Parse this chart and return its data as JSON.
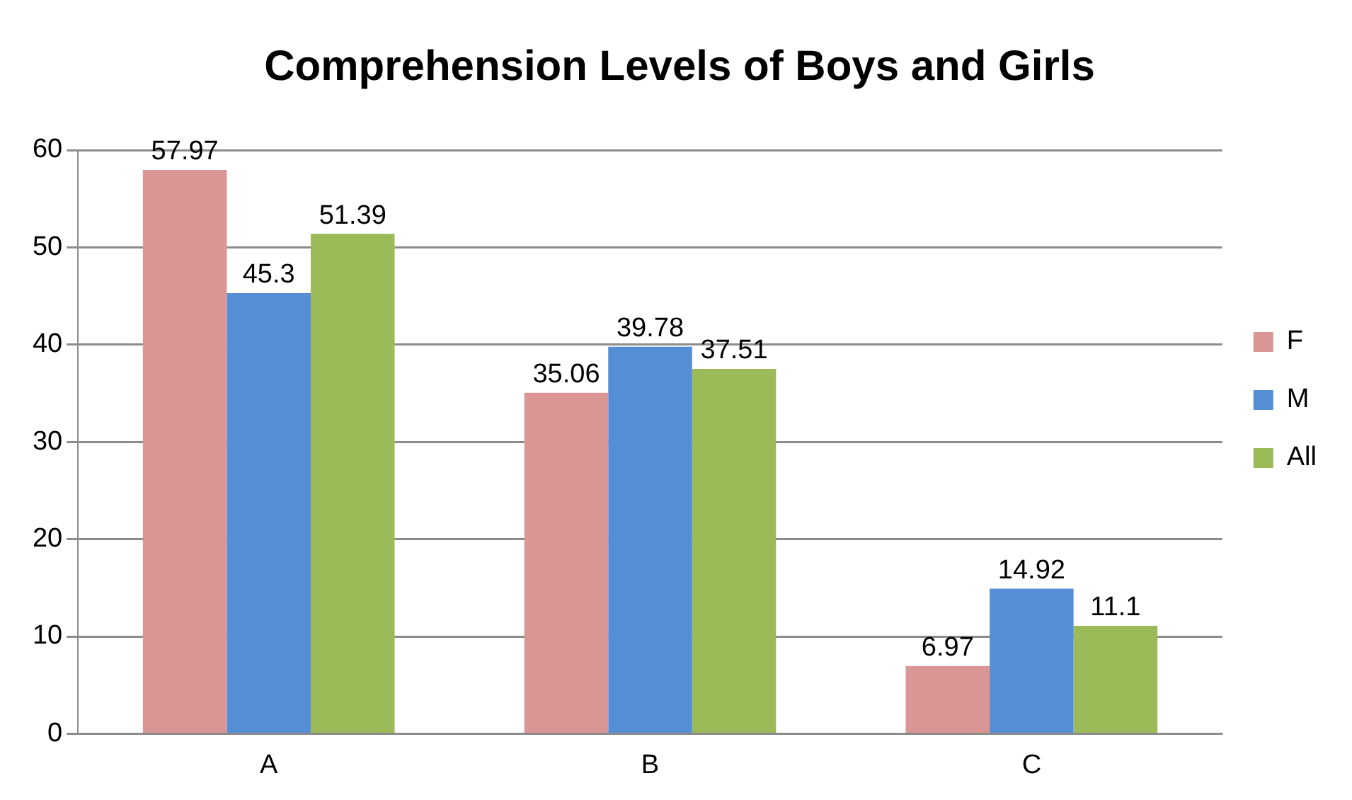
{
  "chart_data": {
    "type": "bar",
    "title": "Comprehension Levels of Boys and Girls",
    "categories": [
      "A",
      "B",
      "C"
    ],
    "series": [
      {
        "name": "F",
        "color": "#d99694",
        "values": [
          57.97,
          35.06,
          6.97
        ]
      },
      {
        "name": "M",
        "color": "#558ed5",
        "values": [
          45.3,
          39.78,
          14.92
        ]
      },
      {
        "name": "All",
        "color": "#9bbb59",
        "values": [
          51.39,
          37.51,
          11.1
        ]
      }
    ],
    "ylim": [
      0,
      60
    ],
    "yticks": [
      0,
      10,
      20,
      30,
      40,
      50,
      60
    ],
    "grid": "y",
    "legend": "right",
    "data_labels": true
  }
}
